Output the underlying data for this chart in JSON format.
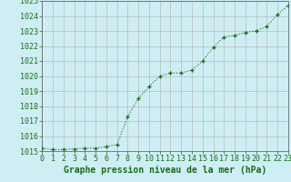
{
  "x": [
    0,
    1,
    2,
    3,
    4,
    5,
    6,
    7,
    8,
    9,
    10,
    11,
    12,
    13,
    14,
    15,
    16,
    17,
    18,
    19,
    20,
    21,
    22,
    23
  ],
  "y": [
    1015.2,
    1015.1,
    1015.1,
    1015.15,
    1015.2,
    1015.2,
    1015.3,
    1015.45,
    1017.3,
    1018.5,
    1019.3,
    1020.0,
    1020.2,
    1020.2,
    1020.4,
    1021.0,
    1021.9,
    1022.6,
    1022.7,
    1022.9,
    1023.0,
    1023.3,
    1024.1,
    1024.7
  ],
  "line_color": "#1a6b1a",
  "marker_color": "#1a6b1a",
  "background_color": "#ceeef4",
  "grid_color": "#b0b0b0",
  "xlabel": "Graphe pression niveau de la mer (hPa)",
  "xlim": [
    0,
    23
  ],
  "ylim": [
    1015.0,
    1025.0
  ],
  "yticks": [
    1015,
    1016,
    1017,
    1018,
    1019,
    1020,
    1021,
    1022,
    1023,
    1024,
    1025
  ],
  "xticks": [
    0,
    1,
    2,
    3,
    4,
    5,
    6,
    7,
    8,
    9,
    10,
    11,
    12,
    13,
    14,
    15,
    16,
    17,
    18,
    19,
    20,
    21,
    22,
    23
  ],
  "xlabel_fontsize": 7,
  "tick_fontsize": 6,
  "marker_size": 3,
  "line_width": 0.8
}
